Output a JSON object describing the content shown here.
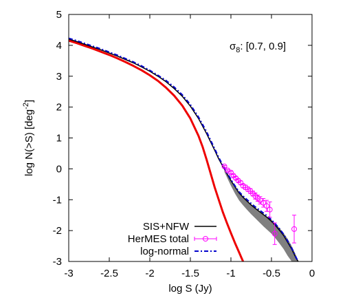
{
  "chart_data": {
    "type": "line",
    "xlabel": "log S (Jy)",
    "ylabel": "log N(>S) [deg",
    "ylabel_sup": "-2",
    "ylabel_close": "]",
    "xlim": [
      -3,
      0
    ],
    "ylim": [
      -3,
      5
    ],
    "xticks": [
      -3,
      -2.5,
      -2,
      -1.5,
      -1,
      -0.5,
      0
    ],
    "xtick_labels": [
      "-3",
      "-2.5",
      "-2",
      "-1.5",
      "-1",
      "-0.5",
      "0"
    ],
    "yticks": [
      -3,
      -2,
      -1,
      0,
      1,
      2,
      3,
      4,
      5
    ],
    "ytick_labels": [
      "-3",
      "-2",
      "-1",
      "0",
      "1",
      "2",
      "3",
      "4",
      "5"
    ],
    "grid": false,
    "legend_position": "bottom-left",
    "annotation": {
      "symbol": "σ",
      "sub": "8",
      "text": ": [0.7, 0.9]"
    },
    "band": {
      "color": "#808080",
      "x": [
        -1.08,
        -1.0,
        -0.95,
        -0.9,
        -0.85,
        -0.8,
        -0.75,
        -0.7,
        -0.65,
        -0.6,
        -0.55,
        -0.5,
        -0.45,
        -0.4,
        -0.35,
        -0.3,
        -0.25,
        -0.2,
        -0.17
      ],
      "upper": [
        0.0,
        -0.4,
        -0.6,
        -0.8,
        -0.93,
        -1.05,
        -1.17,
        -1.27,
        -1.38,
        -1.47,
        -1.56,
        -1.65,
        -1.78,
        -1.92,
        -2.08,
        -2.27,
        -2.5,
        -2.78,
        -3.0
      ],
      "lower": [
        -0.1,
        -0.55,
        -0.8,
        -1.02,
        -1.18,
        -1.33,
        -1.47,
        -1.6,
        -1.73,
        -1.86,
        -1.98,
        -2.1,
        -2.25,
        -2.42,
        -2.6,
        -2.82,
        -3.0,
        -3.0,
        -3.0
      ]
    },
    "series": [
      {
        "name": "SIS+NFW",
        "color": "#000000",
        "style": "solid",
        "x": [
          -3.0,
          -2.9,
          -2.8,
          -2.7,
          -2.6,
          -2.5,
          -2.4,
          -2.3,
          -2.2,
          -2.1,
          -2.0,
          -1.9,
          -1.8,
          -1.7,
          -1.6,
          -1.5,
          -1.4,
          -1.3,
          -1.2,
          -1.15,
          -1.1,
          -1.05,
          -1.0,
          -0.95,
          -0.9,
          -0.85,
          -0.8,
          -0.75,
          -0.7,
          -0.65,
          -0.6,
          -0.55,
          -0.5,
          -0.45,
          -0.4,
          -0.35,
          -0.3,
          -0.25,
          -0.2,
          -0.17
        ],
        "y": [
          4.2,
          4.12,
          4.03,
          3.94,
          3.85,
          3.75,
          3.65,
          3.54,
          3.43,
          3.3,
          3.16,
          3.0,
          2.82,
          2.6,
          2.35,
          2.03,
          1.63,
          1.14,
          0.6,
          0.32,
          0.08,
          -0.15,
          -0.38,
          -0.58,
          -0.78,
          -0.92,
          -1.05,
          -1.17,
          -1.28,
          -1.38,
          -1.48,
          -1.58,
          -1.7,
          -1.84,
          -1.99,
          -2.16,
          -2.38,
          -2.6,
          -2.88,
          -3.0
        ]
      },
      {
        "name": "HerMES total",
        "color": "#ff00ff",
        "style": "errorbars",
        "x": [
          -1.08,
          -1.04,
          -1.0,
          -0.97,
          -0.94,
          -0.91,
          -0.88,
          -0.85,
          -0.82,
          -0.79,
          -0.76,
          -0.73,
          -0.7,
          -0.67,
          -0.64,
          -0.6,
          -0.56,
          -0.52,
          -0.46,
          -0.22
        ],
        "y": [
          0.08,
          -0.05,
          -0.12,
          -0.22,
          -0.3,
          -0.38,
          -0.45,
          -0.55,
          -0.6,
          -0.66,
          -0.72,
          -0.8,
          -0.88,
          -0.95,
          -1.02,
          -1.1,
          -1.2,
          -1.32,
          -2.1,
          -1.95
        ],
        "yerr": [
          0.03,
          0.03,
          0.04,
          0.04,
          0.05,
          0.05,
          0.06,
          0.06,
          0.07,
          0.07,
          0.08,
          0.08,
          0.1,
          0.1,
          0.12,
          0.14,
          0.18,
          0.25,
          0.35,
          0.45
        ]
      },
      {
        "name": "log-normal",
        "color": "#0000cc",
        "style": "dash-dot",
        "x": [
          -3.0,
          -2.9,
          -2.8,
          -2.7,
          -2.6,
          -2.5,
          -2.4,
          -2.3,
          -2.2,
          -2.1,
          -2.0,
          -1.9,
          -1.8,
          -1.7,
          -1.6,
          -1.5,
          -1.4,
          -1.3,
          -1.2,
          -1.15,
          -1.1,
          -1.05,
          -1.0,
          -0.95,
          -0.9,
          -0.85,
          -0.8,
          -0.75,
          -0.7,
          -0.65,
          -0.6,
          -0.55,
          -0.5,
          -0.45,
          -0.4,
          -0.35,
          -0.3,
          -0.25,
          -0.2,
          -0.17
        ],
        "y": [
          4.23,
          4.15,
          4.06,
          3.97,
          3.88,
          3.78,
          3.68,
          3.57,
          3.46,
          3.33,
          3.19,
          3.03,
          2.86,
          2.65,
          2.4,
          2.08,
          1.68,
          1.2,
          0.65,
          0.37,
          0.12,
          -0.12,
          -0.34,
          -0.55,
          -0.74,
          -0.88,
          -1.0,
          -1.12,
          -1.23,
          -1.33,
          -1.43,
          -1.53,
          -1.65,
          -1.79,
          -1.94,
          -2.12,
          -2.34,
          -2.57,
          -2.85,
          -3.0
        ]
      },
      {
        "name": "",
        "color": "#ee0000",
        "style": "solid",
        "x": [
          -3.0,
          -2.9,
          -2.8,
          -2.7,
          -2.6,
          -2.5,
          -2.4,
          -2.3,
          -2.2,
          -2.1,
          -2.0,
          -1.9,
          -1.8,
          -1.7,
          -1.6,
          -1.5,
          -1.4,
          -1.35,
          -1.3,
          -1.25,
          -1.2,
          -1.15,
          -1.1,
          -1.05,
          -1.0,
          -0.95,
          -0.9,
          -0.87,
          -0.85
        ],
        "y": [
          4.15,
          4.07,
          3.98,
          3.89,
          3.79,
          3.69,
          3.58,
          3.46,
          3.33,
          3.19,
          3.03,
          2.85,
          2.63,
          2.37,
          2.05,
          1.63,
          1.07,
          0.72,
          0.3,
          -0.15,
          -0.6,
          -1.0,
          -1.4,
          -1.75,
          -2.08,
          -2.4,
          -2.7,
          -2.88,
          -3.0
        ]
      }
    ]
  }
}
